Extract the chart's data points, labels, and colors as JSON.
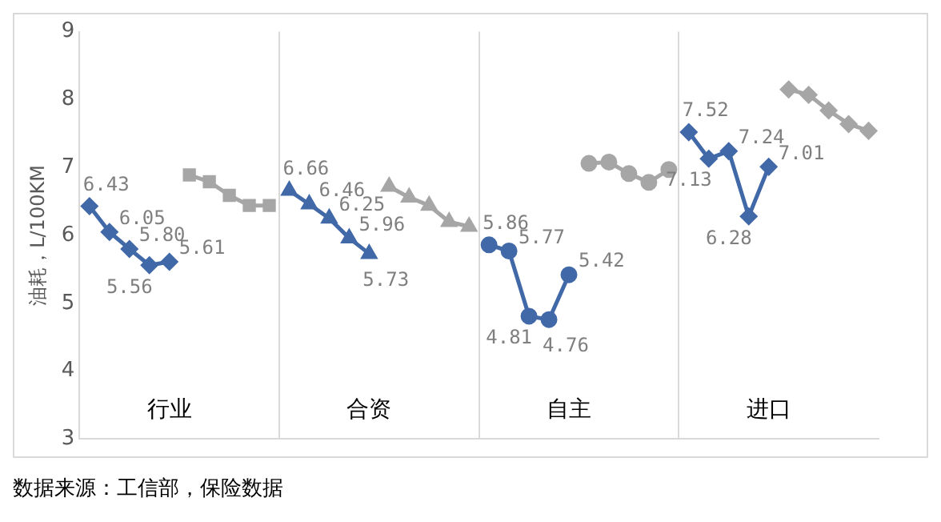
{
  "chart_data": {
    "type": "line",
    "ylabel": "油耗，L/100KM",
    "categories": [
      null,
      null,
      null,
      null,
      "行业",
      null,
      null,
      null,
      null,
      null,
      null,
      null,
      null,
      null,
      "合资",
      null,
      null,
      null,
      null,
      null,
      null,
      null,
      null,
      null,
      "自主",
      null,
      null,
      null,
      null,
      null,
      null,
      null,
      null,
      null,
      "进口",
      null,
      null,
      null,
      null,
      null
    ],
    "ylim": [
      3,
      9
    ],
    "yticks": [
      3,
      4,
      5,
      6,
      7,
      8,
      9
    ],
    "grid": "x",
    "legend": false,
    "series": [
      {
        "color": "#4169a8",
        "marker": "diamond",
        "values": [
          6.43,
          6.05,
          5.8,
          5.56,
          5.61,
          null,
          null,
          null,
          null,
          null,
          null,
          null,
          null,
          null,
          null,
          null,
          null,
          null,
          null,
          null,
          null,
          null,
          null,
          null,
          null,
          null,
          null,
          null,
          null,
          null,
          null,
          null,
          null,
          null,
          null,
          null,
          null,
          null,
          null,
          null
        ],
        "value_labels": [
          "6.43",
          "6.05",
          "5.80",
          "5.56",
          "5.61",
          null,
          null,
          null,
          null,
          null,
          null,
          null,
          null,
          null,
          null,
          null,
          null,
          null,
          null,
          null,
          null,
          null,
          null,
          null,
          null,
          null,
          null,
          null,
          null,
          null,
          null,
          null,
          null,
          null,
          null,
          null,
          null,
          null,
          null,
          null
        ]
      },
      {
        "color": "#a6a6a6",
        "marker": "square",
        "values": [
          null,
          null,
          null,
          null,
          null,
          6.89,
          6.79,
          6.59,
          6.44,
          6.44,
          null,
          null,
          null,
          null,
          null,
          null,
          null,
          null,
          null,
          null,
          null,
          null,
          null,
          null,
          null,
          null,
          null,
          null,
          null,
          null,
          null,
          null,
          null,
          null,
          null,
          null,
          null,
          null,
          null,
          null
        ]
      },
      {
        "color": "#4169a8",
        "marker": "triangle",
        "values": [
          null,
          null,
          null,
          null,
          null,
          null,
          null,
          null,
          null,
          null,
          6.66,
          6.46,
          6.25,
          5.96,
          5.73,
          null,
          null,
          null,
          null,
          null,
          null,
          null,
          null,
          null,
          null,
          null,
          null,
          null,
          null,
          null,
          null,
          null,
          null,
          null,
          null,
          null,
          null,
          null,
          null,
          null
        ],
        "value_labels": [
          null,
          null,
          null,
          null,
          null,
          null,
          null,
          null,
          null,
          null,
          "6.66",
          "6.46",
          "6.25",
          "5.96",
          "5.73",
          null,
          null,
          null,
          null,
          null,
          null,
          null,
          null,
          null,
          null,
          null,
          null,
          null,
          null,
          null,
          null,
          null,
          null,
          null,
          null,
          null,
          null,
          null,
          null,
          null
        ]
      },
      {
        "color": "#a6a6a6",
        "marker": "triangle",
        "values": [
          null,
          null,
          null,
          null,
          null,
          null,
          null,
          null,
          null,
          null,
          null,
          null,
          null,
          null,
          null,
          6.72,
          6.56,
          6.44,
          6.2,
          6.13,
          null,
          null,
          null,
          null,
          null,
          null,
          null,
          null,
          null,
          null,
          null,
          null,
          null,
          null,
          null,
          null,
          null,
          null,
          null,
          null
        ]
      },
      {
        "color": "#4169a8",
        "marker": "circle",
        "values": [
          null,
          null,
          null,
          null,
          null,
          null,
          null,
          null,
          null,
          null,
          null,
          null,
          null,
          null,
          null,
          null,
          null,
          null,
          null,
          null,
          5.86,
          5.77,
          4.81,
          4.76,
          5.42,
          null,
          null,
          null,
          null,
          null,
          null,
          null,
          null,
          null,
          null,
          null,
          null,
          null,
          null,
          null
        ],
        "value_labels": [
          null,
          null,
          null,
          null,
          null,
          null,
          null,
          null,
          null,
          null,
          null,
          null,
          null,
          null,
          null,
          null,
          null,
          null,
          null,
          null,
          "5.86",
          "5.77",
          "4.81",
          "4.76",
          "5.42",
          null,
          null,
          null,
          null,
          null,
          null,
          null,
          null,
          null,
          null,
          null,
          null,
          null,
          null,
          null
        ]
      },
      {
        "color": "#a6a6a6",
        "marker": "circle",
        "values": [
          null,
          null,
          null,
          null,
          null,
          null,
          null,
          null,
          null,
          null,
          null,
          null,
          null,
          null,
          null,
          null,
          null,
          null,
          null,
          null,
          null,
          null,
          null,
          null,
          null,
          7.06,
          7.08,
          6.91,
          6.78,
          6.97,
          null,
          null,
          null,
          null,
          null,
          null,
          null,
          null,
          null,
          null
        ]
      },
      {
        "color": "#4169a8",
        "marker": "diamond",
        "values": [
          null,
          null,
          null,
          null,
          null,
          null,
          null,
          null,
          null,
          null,
          null,
          null,
          null,
          null,
          null,
          null,
          null,
          null,
          null,
          null,
          null,
          null,
          null,
          null,
          null,
          null,
          null,
          null,
          null,
          null,
          7.52,
          7.13,
          7.24,
          6.28,
          7.01,
          null,
          null,
          null,
          null,
          null
        ],
        "value_labels": [
          null,
          null,
          null,
          null,
          null,
          null,
          null,
          null,
          null,
          null,
          null,
          null,
          null,
          null,
          null,
          null,
          null,
          null,
          null,
          null,
          null,
          null,
          null,
          null,
          null,
          null,
          null,
          null,
          null,
          null,
          "7.52",
          "7.13",
          "7.24",
          "6.28",
          "7.01",
          null,
          null,
          null,
          null,
          null
        ]
      },
      {
        "color": "#a6a6a6",
        "marker": "diamond",
        "values": [
          null,
          null,
          null,
          null,
          null,
          null,
          null,
          null,
          null,
          null,
          null,
          null,
          null,
          null,
          null,
          null,
          null,
          null,
          null,
          null,
          null,
          null,
          null,
          null,
          null,
          null,
          null,
          null,
          null,
          null,
          null,
          null,
          null,
          null,
          null,
          8.15,
          8.07,
          7.84,
          7.64,
          7.54
        ]
      }
    ],
    "annotations": [
      "数据来源：工信部，保险数据"
    ]
  }
}
